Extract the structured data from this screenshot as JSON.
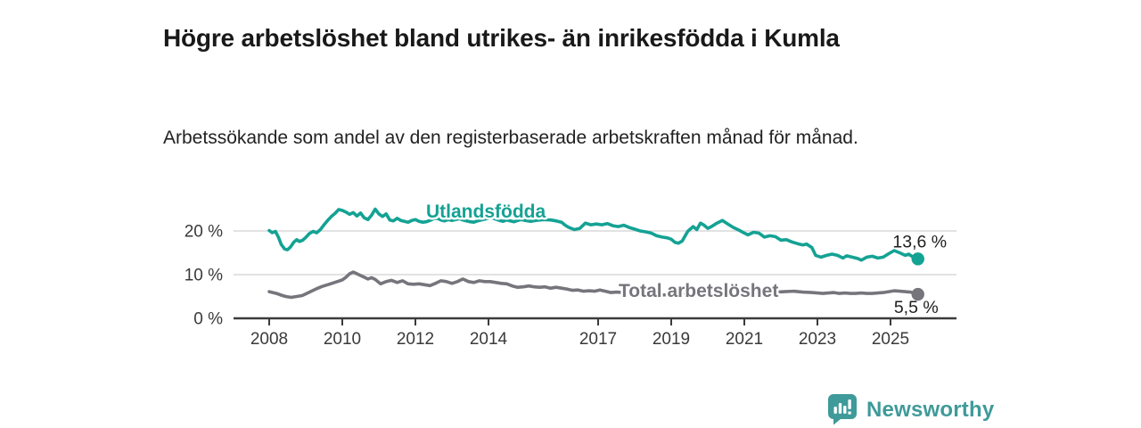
{
  "header": {
    "title": "Högre arbetslöshet bland utrikes- än inrikesfödda i Kumla",
    "subtitle": "Arbetssökande som andel av den registerbaserade arbetskraften månad för månad."
  },
  "chart_data": {
    "type": "line",
    "title": "Högre arbetslöshet bland utrikes- än inrikesfödda i Kumla",
    "subtitle": "Arbetssökande som andel av den registerbaserade arbetskraften månad för månad.",
    "grid": "horizontal",
    "legend_position": "inline-labels",
    "x_axis": {
      "min": 2007.1,
      "max": 2026.8,
      "ticks": [
        2008,
        2010,
        2012,
        2014,
        2017,
        2019,
        2021,
        2023,
        2025
      ],
      "tick_labels": [
        "2008",
        "2010",
        "2012",
        "2014",
        "2017",
        "2019",
        "2021",
        "2023",
        "2025"
      ]
    },
    "y_axis": {
      "min": 0,
      "max": 26,
      "ticks": [
        0,
        10,
        20
      ],
      "tick_labels": [
        "0 %",
        "10 %",
        "20 %"
      ],
      "gridline_ticks": [
        10,
        20
      ]
    },
    "series": [
      {
        "name": "Utlandsfödda",
        "color": "#14a294",
        "end_value": 13.6,
        "end_label": "13,6 %",
        "points": [
          [
            2008.0,
            20.1
          ],
          [
            2008.08,
            19.6
          ],
          [
            2008.17,
            19.9
          ],
          [
            2008.25,
            18.6
          ],
          [
            2008.33,
            16.9
          ],
          [
            2008.42,
            15.9
          ],
          [
            2008.5,
            15.7
          ],
          [
            2008.58,
            16.3
          ],
          [
            2008.67,
            17.4
          ],
          [
            2008.75,
            18.0
          ],
          [
            2008.83,
            17.6
          ],
          [
            2008.92,
            17.9
          ],
          [
            2009.0,
            18.5
          ],
          [
            2009.1,
            19.4
          ],
          [
            2009.2,
            19.9
          ],
          [
            2009.3,
            19.6
          ],
          [
            2009.4,
            20.3
          ],
          [
            2009.5,
            21.4
          ],
          [
            2009.6,
            22.4
          ],
          [
            2009.7,
            23.3
          ],
          [
            2009.8,
            24.0
          ],
          [
            2009.9,
            24.9
          ],
          [
            2010.0,
            24.7
          ],
          [
            2010.1,
            24.3
          ],
          [
            2010.2,
            23.8
          ],
          [
            2010.3,
            24.2
          ],
          [
            2010.4,
            23.4
          ],
          [
            2010.5,
            24.1
          ],
          [
            2010.6,
            23.0
          ],
          [
            2010.7,
            22.6
          ],
          [
            2010.8,
            23.6
          ],
          [
            2010.9,
            25.0
          ],
          [
            2011.0,
            23.9
          ],
          [
            2011.1,
            23.3
          ],
          [
            2011.2,
            23.9
          ],
          [
            2011.3,
            22.5
          ],
          [
            2011.4,
            22.3
          ],
          [
            2011.5,
            22.9
          ],
          [
            2011.6,
            22.4
          ],
          [
            2011.7,
            22.2
          ],
          [
            2011.8,
            22.0
          ],
          [
            2011.9,
            22.4
          ],
          [
            2012.0,
            22.6
          ],
          [
            2012.1,
            22.2
          ],
          [
            2012.2,
            22.0
          ],
          [
            2012.3,
            22.1
          ],
          [
            2012.4,
            22.4
          ],
          [
            2012.5,
            22.8
          ],
          [
            2012.6,
            22.9
          ],
          [
            2012.7,
            22.5
          ],
          [
            2012.8,
            22.3
          ],
          [
            2012.9,
            22.6
          ],
          [
            2013.0,
            22.4
          ],
          [
            2013.1,
            22.6
          ],
          [
            2013.2,
            22.8
          ],
          [
            2013.3,
            22.5
          ],
          [
            2013.4,
            22.3
          ],
          [
            2013.5,
            22.1
          ],
          [
            2013.6,
            22.0
          ],
          [
            2013.7,
            22.3
          ],
          [
            2013.8,
            22.5
          ],
          [
            2013.9,
            22.7
          ],
          [
            2014.0,
            22.9
          ],
          [
            2014.1,
            23.0
          ],
          [
            2014.2,
            22.7
          ],
          [
            2014.3,
            22.4
          ],
          [
            2014.4,
            22.2
          ],
          [
            2014.5,
            22.5
          ],
          [
            2014.6,
            22.3
          ],
          [
            2014.7,
            22.1
          ],
          [
            2014.8,
            22.4
          ],
          [
            2014.9,
            22.6
          ],
          [
            2015.0,
            22.4
          ],
          [
            2015.15,
            22.2
          ],
          [
            2015.3,
            22.4
          ],
          [
            2015.5,
            22.6
          ],
          [
            2015.7,
            22.5
          ],
          [
            2015.85,
            22.3
          ],
          [
            2016.0,
            22.0
          ],
          [
            2016.1,
            21.3
          ],
          [
            2016.2,
            20.8
          ],
          [
            2016.35,
            20.3
          ],
          [
            2016.5,
            20.6
          ],
          [
            2016.65,
            21.8
          ],
          [
            2016.8,
            21.4
          ],
          [
            2016.95,
            21.6
          ],
          [
            2017.1,
            21.4
          ],
          [
            2017.25,
            21.7
          ],
          [
            2017.4,
            21.2
          ],
          [
            2017.55,
            21.0
          ],
          [
            2017.7,
            21.3
          ],
          [
            2017.85,
            20.8
          ],
          [
            2018.0,
            20.4
          ],
          [
            2018.15,
            20.0
          ],
          [
            2018.3,
            19.8
          ],
          [
            2018.45,
            19.5
          ],
          [
            2018.6,
            18.9
          ],
          [
            2018.75,
            18.6
          ],
          [
            2018.9,
            18.4
          ],
          [
            2019.0,
            18.1
          ],
          [
            2019.1,
            17.4
          ],
          [
            2019.2,
            17.2
          ],
          [
            2019.3,
            17.7
          ],
          [
            2019.45,
            19.9
          ],
          [
            2019.6,
            21.0
          ],
          [
            2019.7,
            20.3
          ],
          [
            2019.8,
            21.8
          ],
          [
            2019.9,
            21.3
          ],
          [
            2020.0,
            20.6
          ],
          [
            2020.1,
            21.0
          ],
          [
            2020.25,
            21.8
          ],
          [
            2020.4,
            22.4
          ],
          [
            2020.55,
            21.6
          ],
          [
            2020.7,
            20.8
          ],
          [
            2020.85,
            20.2
          ],
          [
            2021.0,
            19.5
          ],
          [
            2021.1,
            19.1
          ],
          [
            2021.25,
            19.7
          ],
          [
            2021.4,
            19.5
          ],
          [
            2021.55,
            18.6
          ],
          [
            2021.7,
            18.9
          ],
          [
            2021.85,
            18.7
          ],
          [
            2022.0,
            17.9
          ],
          [
            2022.15,
            18.0
          ],
          [
            2022.3,
            17.5
          ],
          [
            2022.45,
            17.1
          ],
          [
            2022.6,
            16.8
          ],
          [
            2022.7,
            17.0
          ],
          [
            2022.85,
            16.2
          ],
          [
            2022.95,
            14.4
          ],
          [
            2023.1,
            14.0
          ],
          [
            2023.25,
            14.4
          ],
          [
            2023.4,
            14.7
          ],
          [
            2023.55,
            14.4
          ],
          [
            2023.7,
            13.8
          ],
          [
            2023.8,
            14.3
          ],
          [
            2023.95,
            14.0
          ],
          [
            2024.1,
            13.7
          ],
          [
            2024.2,
            13.3
          ],
          [
            2024.35,
            14.0
          ],
          [
            2024.5,
            14.2
          ],
          [
            2024.65,
            13.8
          ],
          [
            2024.8,
            14.0
          ],
          [
            2024.95,
            14.8
          ],
          [
            2025.1,
            15.5
          ],
          [
            2025.25,
            15.0
          ],
          [
            2025.4,
            14.4
          ],
          [
            2025.5,
            14.7
          ],
          [
            2025.6,
            14.1
          ],
          [
            2025.75,
            13.6
          ]
        ]
      },
      {
        "name": "Total arbetslöshet",
        "color": "#76757c",
        "end_value": 5.5,
        "end_label": "5,5 %",
        "points": [
          [
            2008.0,
            6.1
          ],
          [
            2008.1,
            5.9
          ],
          [
            2008.2,
            5.7
          ],
          [
            2008.33,
            5.3
          ],
          [
            2008.45,
            5.0
          ],
          [
            2008.6,
            4.8
          ],
          [
            2008.75,
            5.0
          ],
          [
            2008.9,
            5.2
          ],
          [
            2009.0,
            5.6
          ],
          [
            2009.15,
            6.2
          ],
          [
            2009.3,
            6.8
          ],
          [
            2009.45,
            7.3
          ],
          [
            2009.6,
            7.7
          ],
          [
            2009.75,
            8.1
          ],
          [
            2009.9,
            8.5
          ],
          [
            2010.0,
            8.8
          ],
          [
            2010.1,
            9.4
          ],
          [
            2010.2,
            10.2
          ],
          [
            2010.3,
            10.6
          ],
          [
            2010.4,
            10.2
          ],
          [
            2010.5,
            9.8
          ],
          [
            2010.6,
            9.4
          ],
          [
            2010.7,
            9.0
          ],
          [
            2010.8,
            9.3
          ],
          [
            2010.9,
            8.9
          ],
          [
            2011.05,
            7.9
          ],
          [
            2011.2,
            8.4
          ],
          [
            2011.35,
            8.7
          ],
          [
            2011.5,
            8.2
          ],
          [
            2011.65,
            8.6
          ],
          [
            2011.8,
            7.9
          ],
          [
            2011.95,
            7.8
          ],
          [
            2012.1,
            7.9
          ],
          [
            2012.25,
            7.7
          ],
          [
            2012.4,
            7.5
          ],
          [
            2012.55,
            8.0
          ],
          [
            2012.7,
            8.6
          ],
          [
            2012.85,
            8.4
          ],
          [
            2013.0,
            8.0
          ],
          [
            2013.15,
            8.4
          ],
          [
            2013.3,
            9.0
          ],
          [
            2013.45,
            8.4
          ],
          [
            2013.6,
            8.2
          ],
          [
            2013.75,
            8.6
          ],
          [
            2013.9,
            8.4
          ],
          [
            2014.05,
            8.4
          ],
          [
            2014.2,
            8.2
          ],
          [
            2014.35,
            8.0
          ],
          [
            2014.5,
            7.9
          ],
          [
            2014.65,
            7.4
          ],
          [
            2014.8,
            7.1
          ],
          [
            2014.95,
            7.2
          ],
          [
            2015.1,
            7.4
          ],
          [
            2015.25,
            7.2
          ],
          [
            2015.4,
            7.1
          ],
          [
            2015.55,
            7.2
          ],
          [
            2015.7,
            6.9
          ],
          [
            2015.85,
            7.1
          ],
          [
            2016.0,
            6.9
          ],
          [
            2016.15,
            6.7
          ],
          [
            2016.3,
            6.4
          ],
          [
            2016.45,
            6.5
          ],
          [
            2016.6,
            6.2
          ],
          [
            2016.75,
            6.3
          ],
          [
            2016.9,
            6.2
          ],
          [
            2017.05,
            6.5
          ],
          [
            2017.2,
            6.2
          ],
          [
            2017.35,
            5.9
          ],
          [
            2017.5,
            6.0
          ],
          [
            2017.7,
            5.9
          ],
          [
            2017.9,
            5.8
          ],
          [
            2018.1,
            5.6
          ],
          [
            2018.3,
            5.5
          ],
          [
            2018.5,
            5.4
          ],
          [
            2018.7,
            5.3
          ],
          [
            2018.9,
            5.4
          ],
          [
            2019.1,
            5.5
          ],
          [
            2019.3,
            5.6
          ],
          [
            2019.6,
            6.0
          ],
          [
            2019.9,
            6.2
          ],
          [
            2020.2,
            6.8
          ],
          [
            2020.5,
            7.2
          ],
          [
            2020.8,
            7.0
          ],
          [
            2021.0,
            6.8
          ],
          [
            2021.3,
            6.5
          ],
          [
            2021.6,
            6.2
          ],
          [
            2021.9,
            6.0
          ],
          [
            2022.1,
            6.1
          ],
          [
            2022.35,
            6.2
          ],
          [
            2022.6,
            6.0
          ],
          [
            2022.85,
            5.9
          ],
          [
            2023.0,
            5.8
          ],
          [
            2023.15,
            5.7
          ],
          [
            2023.3,
            5.8
          ],
          [
            2023.45,
            5.9
          ],
          [
            2023.6,
            5.7
          ],
          [
            2023.75,
            5.8
          ],
          [
            2023.9,
            5.7
          ],
          [
            2024.05,
            5.7
          ],
          [
            2024.2,
            5.8
          ],
          [
            2024.35,
            5.7
          ],
          [
            2024.5,
            5.7
          ],
          [
            2024.65,
            5.8
          ],
          [
            2024.8,
            5.9
          ],
          [
            2024.95,
            6.1
          ],
          [
            2025.1,
            6.3
          ],
          [
            2025.25,
            6.2
          ],
          [
            2025.4,
            6.1
          ],
          [
            2025.55,
            6.0
          ],
          [
            2025.75,
            5.5
          ]
        ]
      }
    ],
    "colors": {
      "gridline": "#d9d9d9",
      "axis_line": "#3b3b3b",
      "tick_text": "#3a3a3a",
      "value_label_text": "#1f1f1f"
    }
  },
  "footer": {
    "brand": "Newsworthy",
    "brand_color": "#3f9a9a",
    "logo_icon": "bar-chart-speech-bubble-icon"
  }
}
